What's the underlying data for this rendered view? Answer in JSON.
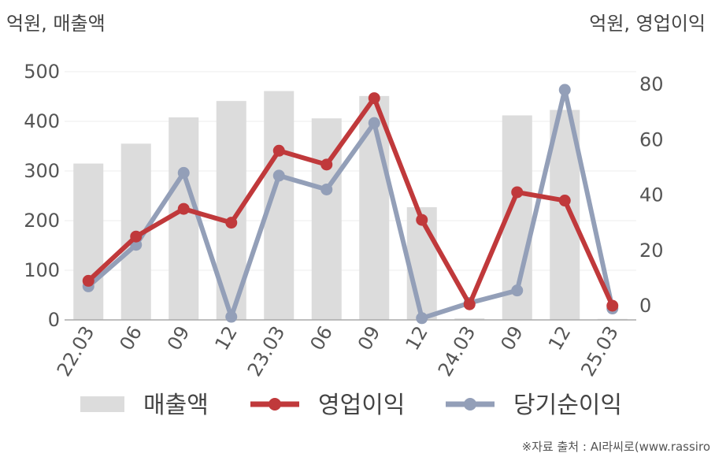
{
  "chart_data": {
    "type": "bar+line",
    "left_unit": "억원, 매출액",
    "right_unit": "억원, 영업이익",
    "categories": [
      "22.03",
      "06",
      "09",
      "12",
      "23.03",
      "06",
      "09",
      "12",
      "24.03",
      "09",
      "12",
      "25.03"
    ],
    "left_axis": {
      "ylim": [
        0,
        500
      ],
      "ticks": [
        0,
        100,
        200,
        300,
        400,
        500
      ]
    },
    "right_axis": {
      "ylim": [
        -5,
        85
      ],
      "ticks": [
        0,
        20,
        40,
        60,
        80
      ]
    },
    "series": [
      {
        "name": "매출액",
        "type": "bar",
        "axis": "left",
        "color": "#dcdcdc",
        "values": [
          315,
          355,
          408,
          441,
          461,
          406,
          451,
          227,
          3,
          412,
          423,
          2
        ]
      },
      {
        "name": "영업이익",
        "type": "line",
        "axis": "right",
        "color": "#c0393b",
        "values": [
          9,
          25,
          35,
          30,
          56,
          51,
          75,
          31,
          0.5,
          41,
          38,
          0
        ]
      },
      {
        "name": "당기순이익",
        "type": "line",
        "axis": "right",
        "color": "#939fb8",
        "values": [
          7,
          22,
          48,
          -4,
          47,
          42,
          66,
          -4.5,
          1,
          5.5,
          78,
          -1
        ]
      }
    ],
    "grid": true,
    "legend_position": "bottom"
  },
  "source_text": "※자료 출처 : AI라씨로(www.rassiro"
}
